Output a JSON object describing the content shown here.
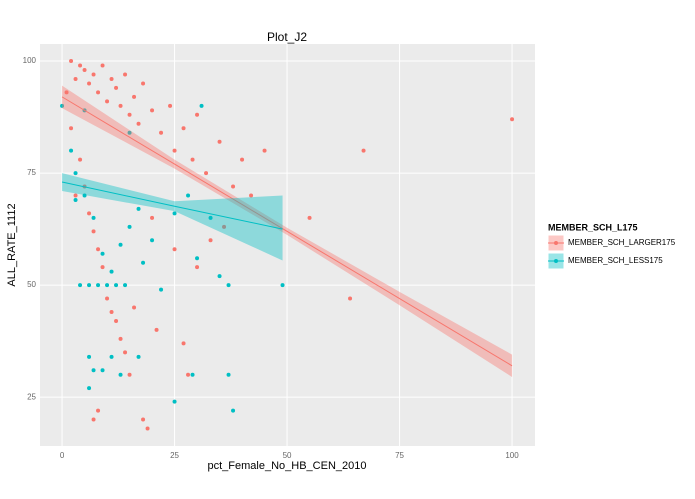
{
  "chart_data": {
    "type": "scatter",
    "title": "Plot_J2",
    "x_label": "pct_Female_No_HB_CEN_2010",
    "y_label": "ALL_RATE_1112",
    "legend_title": "MEMBER_SCH_L175",
    "legend_position": "right",
    "grid": true,
    "xlim": [
      -4.9,
      105.1
    ],
    "ylim": [
      14.1,
      103.8
    ],
    "xticks": [
      0,
      25,
      50,
      75,
      100
    ],
    "yticks": [
      25,
      50,
      75,
      100
    ],
    "series": [
      {
        "name": "MEMBER_SCH_LARGER175",
        "color": "#F8766D",
        "x": [
          2,
          3,
          4,
          5,
          6,
          7,
          8,
          9,
          10,
          11,
          12,
          13,
          14,
          15,
          16,
          17,
          18,
          20,
          22,
          24,
          25,
          27,
          29,
          30,
          32,
          35,
          38,
          40,
          42,
          45,
          2,
          4,
          5,
          6,
          7,
          8,
          9,
          10,
          11,
          12,
          13,
          14,
          15,
          16,
          18,
          8,
          7,
          19,
          27,
          28,
          21,
          30,
          33,
          36,
          55,
          64,
          67,
          100,
          3,
          1,
          20,
          25
        ],
        "values": [
          100,
          96,
          99,
          98,
          95,
          97,
          93,
          99,
          91,
          96,
          94,
          90,
          97,
          88,
          92,
          86,
          95,
          89,
          84,
          90,
          80,
          85,
          78,
          88,
          75,
          82,
          72,
          78,
          70,
          80,
          85,
          78,
          72,
          66,
          62,
          58,
          54,
          47,
          44,
          42,
          38,
          35,
          30,
          45,
          20,
          22,
          20,
          18,
          37,
          30,
          40,
          54,
          60,
          63,
          65,
          47,
          80,
          87,
          70,
          93,
          65,
          58
        ],
        "fit": {
          "x": [
            0,
            25,
            50,
            75,
            100
          ],
          "values": [
            92,
            77,
            62,
            47,
            32
          ],
          "lower": [
            89.5,
            76,
            61.2,
            45.5,
            29.5
          ],
          "upper": [
            94.5,
            78,
            62.8,
            48.5,
            34.5
          ]
        }
      },
      {
        "name": "MEMBER_SCH_LESS175",
        "color": "#00BFC4",
        "x": [
          0,
          2,
          3,
          5,
          6,
          8,
          10,
          12,
          14,
          4,
          3,
          7,
          9,
          11,
          13,
          15,
          17,
          18,
          20,
          22,
          25,
          28,
          30,
          33,
          35,
          37,
          6,
          7,
          9,
          11,
          13,
          6,
          17,
          25,
          29,
          37,
          38,
          49,
          5,
          15,
          31
        ],
        "values": [
          90,
          80,
          75,
          70,
          50,
          50,
          50,
          50,
          50,
          50,
          69,
          65,
          57,
          53,
          59,
          63,
          67,
          55,
          60,
          49,
          66,
          70,
          56,
          65,
          52,
          50,
          34,
          31,
          31,
          34,
          30,
          27,
          34,
          24,
          30,
          30,
          22,
          50,
          89,
          84,
          90
        ],
        "fit": {
          "x": [
            0,
            25,
            49
          ],
          "values": [
            73,
            67.6,
            62.5
          ],
          "lower": [
            71,
            66.5,
            55.5
          ],
          "upper": [
            75,
            68.7,
            70
          ]
        }
      }
    ]
  }
}
